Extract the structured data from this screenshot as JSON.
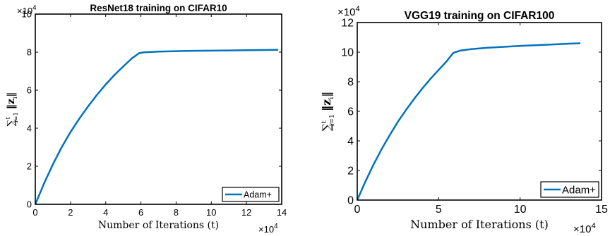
{
  "chart_data": [
    {
      "type": "line",
      "title": "ResNet18 training on CIFAR10",
      "xlabel": "Number of Iterations (t)",
      "ylabel_math": {
        "sum": "∑",
        "sup": "t",
        "sub": "i=1",
        "norm": "‖z",
        "norm_sub": "i",
        "norm_end": "‖"
      },
      "x_exponent_base": "×10",
      "x_exponent_power": "4",
      "y_exponent_base": "×10",
      "y_exponent_power": "4",
      "xlim": [
        0,
        14
      ],
      "ylim": [
        0,
        10
      ],
      "xticks": [
        0,
        2,
        4,
        6,
        8,
        10,
        12,
        14
      ],
      "yticks": [
        0,
        2,
        4,
        6,
        8,
        10
      ],
      "legend_position": "bottom-right",
      "line_color": "#0072BD",
      "series": [
        {
          "name": "Adam+",
          "x": [
            0,
            0.5,
            1,
            1.5,
            2,
            2.5,
            3,
            3.5,
            4,
            4.5,
            5,
            5.5,
            5.9,
            6.2,
            7,
            8,
            9,
            10,
            11,
            12,
            13,
            13.8
          ],
          "y": [
            0,
            1.1,
            2.1,
            3.0,
            3.8,
            4.5,
            5.15,
            5.75,
            6.3,
            6.8,
            7.25,
            7.68,
            7.95,
            7.99,
            8.03,
            8.05,
            8.07,
            8.08,
            8.09,
            8.1,
            8.11,
            8.12
          ]
        }
      ]
    },
    {
      "type": "line",
      "title": "VGG19 training on CIFAR100",
      "xlabel": "Number of Iterations (t)",
      "ylabel_math": {
        "sum": "∑",
        "sup": "t",
        "sub": "i=1",
        "norm": "‖z",
        "norm_sub": "i",
        "norm_end": "‖"
      },
      "x_exponent_base": "×10",
      "x_exponent_power": "4",
      "y_exponent_base": "×10",
      "y_exponent_power": "4",
      "xlim": [
        0,
        15
      ],
      "ylim": [
        0,
        12
      ],
      "xticks": [
        0,
        5,
        10,
        15
      ],
      "yticks": [
        0,
        2,
        4,
        6,
        8,
        10,
        12
      ],
      "legend_position": "bottom-right",
      "line_color": "#0072BD",
      "series": [
        {
          "name": "Adam+",
          "x": [
            0,
            0.5,
            1,
            1.5,
            2,
            2.5,
            3,
            3.5,
            4,
            4.5,
            5,
            5.5,
            5.9,
            6.3,
            7,
            8,
            9,
            10,
            11,
            12,
            13,
            13.7
          ],
          "y": [
            0,
            1.25,
            2.4,
            3.45,
            4.4,
            5.3,
            6.1,
            6.85,
            7.55,
            8.2,
            8.8,
            9.4,
            9.95,
            10.1,
            10.2,
            10.3,
            10.36,
            10.42,
            10.47,
            10.52,
            10.57,
            10.6
          ]
        }
      ]
    }
  ]
}
